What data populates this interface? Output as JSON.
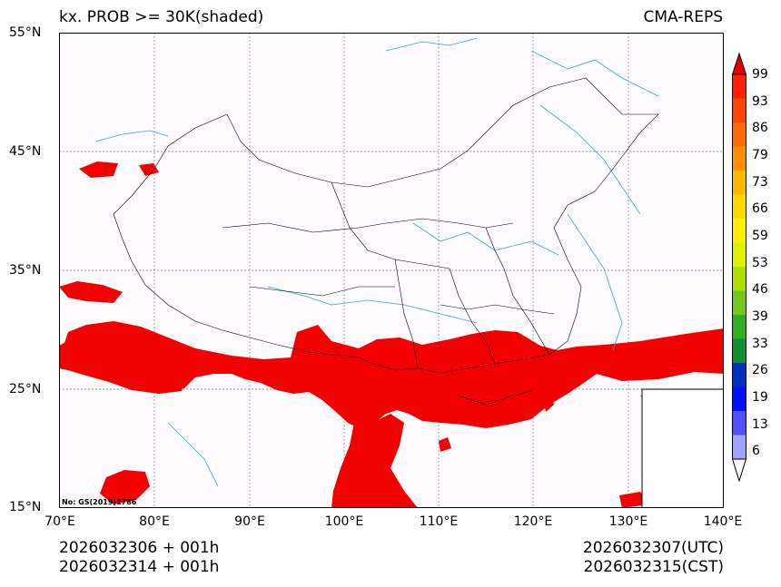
{
  "title_left": "kx. PROB >= 30K(shaded)",
  "title_right": "CMA-REPS",
  "lat_ticks": [
    "55°N",
    "45°N",
    "35°N",
    "25°N",
    "15°N"
  ],
  "lon_ticks": [
    "70°E",
    "80°E",
    "90°E",
    "100°E",
    "110°E",
    "120°E",
    "130°E",
    "140°E"
  ],
  "colorbar": {
    "labels": [
      "99",
      "93",
      "86",
      "79",
      "73",
      "66",
      "59",
      "53",
      "46",
      "39",
      "33",
      "26",
      "19",
      "13",
      "6"
    ],
    "colors": [
      "#ff2000",
      "#ff4500",
      "#ff6a00",
      "#ff9000",
      "#ffb800",
      "#ffd800",
      "#fff000",
      "#e0f000",
      "#b0e000",
      "#70c820",
      "#30b020",
      "#109030",
      "#0030c0",
      "#0010ff",
      "#5050ff",
      "#a0a0ff"
    ],
    "top_arrow_color": "#e00000",
    "bottom_arrow_color": "#ffffff"
  },
  "map_colors": {
    "shade": "#f20000",
    "background": "#fdfbfd",
    "river": "#3aa0d8",
    "border": "#000000"
  },
  "stamp": "No: GS(2019)1786",
  "footer": {
    "left_line1": "2026032306  +  001h",
    "left_line2": "2026032314  +  001h",
    "right_line1": "2026032307(UTC)",
    "right_line2": "2026032315(CST)"
  }
}
